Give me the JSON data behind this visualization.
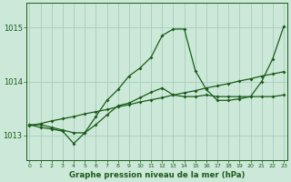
{
  "title": "Graphe pression niveau de la mer (hPa)",
  "background_color": "#cce8d8",
  "grid_color": "#aaccbb",
  "line_color": "#1a5c1a",
  "x_ticks": [
    0,
    1,
    2,
    3,
    4,
    5,
    6,
    7,
    8,
    9,
    10,
    11,
    12,
    13,
    14,
    15,
    16,
    17,
    18,
    19,
    20,
    21,
    22,
    23
  ],
  "y_ticks": [
    1013,
    1014,
    1015
  ],
  "ylim": [
    1012.55,
    1015.45
  ],
  "xlim": [
    -0.3,
    23.3
  ],
  "series_straight": {
    "x": [
      0,
      1,
      2,
      3,
      4,
      5,
      6,
      7,
      8,
      9,
      10,
      11,
      12,
      13,
      14,
      15,
      16,
      17,
      18,
      19,
      20,
      21,
      22,
      23
    ],
    "y": [
      1013.18,
      1013.22,
      1013.27,
      1013.31,
      1013.35,
      1013.4,
      1013.44,
      1013.48,
      1013.53,
      1013.57,
      1013.62,
      1013.66,
      1013.7,
      1013.75,
      1013.79,
      1013.83,
      1013.88,
      1013.92,
      1013.96,
      1014.01,
      1014.05,
      1014.1,
      1014.14,
      1014.18
    ]
  },
  "series_peak": {
    "x": [
      0,
      1,
      2,
      3,
      4,
      5,
      6,
      7,
      8,
      9,
      10,
      11,
      12,
      13,
      14,
      15,
      16,
      17,
      18,
      19,
      20,
      21,
      22,
      23
    ],
    "y": [
      1013.2,
      1013.15,
      1013.12,
      1013.08,
      1012.85,
      1013.05,
      1013.35,
      1013.65,
      1013.85,
      1014.1,
      1014.25,
      1014.45,
      1014.85,
      1014.97,
      1014.97,
      1014.2,
      1013.85,
      1013.65,
      1013.65,
      1013.68,
      1013.72,
      1014.0,
      1014.42,
      1015.02
    ]
  },
  "series_mid": {
    "x": [
      0,
      1,
      2,
      3,
      4,
      5,
      6,
      7,
      8,
      9,
      10,
      11,
      12,
      13,
      14,
      15,
      16,
      17,
      18,
      19,
      20,
      21,
      22,
      23
    ],
    "y": [
      1013.2,
      1013.2,
      1013.15,
      1013.1,
      1013.05,
      1013.05,
      1013.2,
      1013.38,
      1013.55,
      1013.6,
      1013.7,
      1013.8,
      1013.88,
      1013.75,
      1013.72,
      1013.72,
      1013.75,
      1013.72,
      1013.72,
      1013.72,
      1013.72,
      1013.72,
      1013.72,
      1013.75
    ]
  }
}
